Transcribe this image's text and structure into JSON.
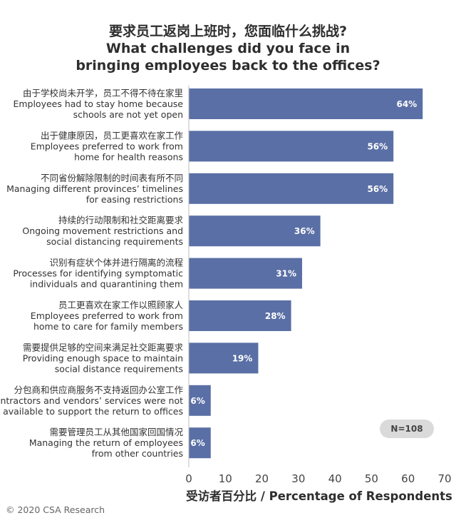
{
  "title_lines": [
    "要求员工返岗上班时，您面临什么挑战?",
    "What challenges did you face in",
    "bringing employees back to the offices?"
  ],
  "chart_data": {
    "type": "bar",
    "orientation": "horizontal",
    "categories": [
      [
        "由于学校尚未开学，员工不得不待在家里",
        "Employees had to stay home because",
        "schools are not yet open"
      ],
      [
        "出于健康原因，员工更喜欢在家工作",
        "Employees preferred to work from",
        "home for health reasons"
      ],
      [
        "不同省份解除限制的时间表有所不同",
        "Managing different provinces’ timelines",
        "for easing restrictions"
      ],
      [
        "持续的行动限制和社交距离要求",
        "Ongoing movement restrictions and",
        "social distancing requirements"
      ],
      [
        "识别有症状个体并进行隔离的流程",
        "Processes for identifying symptomatic",
        "individuals and quarantining them"
      ],
      [
        "员工更喜欢在家工作以照顾家人",
        "Employees preferred to work from",
        "home to care for family members"
      ],
      [
        "需要提供足够的空间来满足社交距离要求",
        "Providing enough space to maintain",
        "social distance requirements"
      ],
      [
        "分包商和供应商服务不支持返回办公室工作",
        "Subcontractors and vendors’ services were not",
        "available to support the return to offices"
      ],
      [
        "需要管理员工从其他国家回国情况",
        "Managing the return of employees",
        "from other countries"
      ]
    ],
    "values": [
      64,
      56,
      56,
      36,
      31,
      28,
      19,
      6,
      6
    ],
    "value_labels": [
      "64%",
      "56%",
      "56%",
      "36%",
      "31%",
      "28%",
      "19%",
      "6%",
      "6%"
    ],
    "xlim": [
      0,
      70
    ],
    "xticks": [
      "0",
      "10",
      "20",
      "30",
      "40",
      "50",
      "60",
      "70"
    ],
    "xlabel": "受访者百分比 / Percentage of Respondents",
    "bar_color": "#5a6fa5",
    "note": "N=108"
  },
  "credit": "© 2020 CSA Research"
}
